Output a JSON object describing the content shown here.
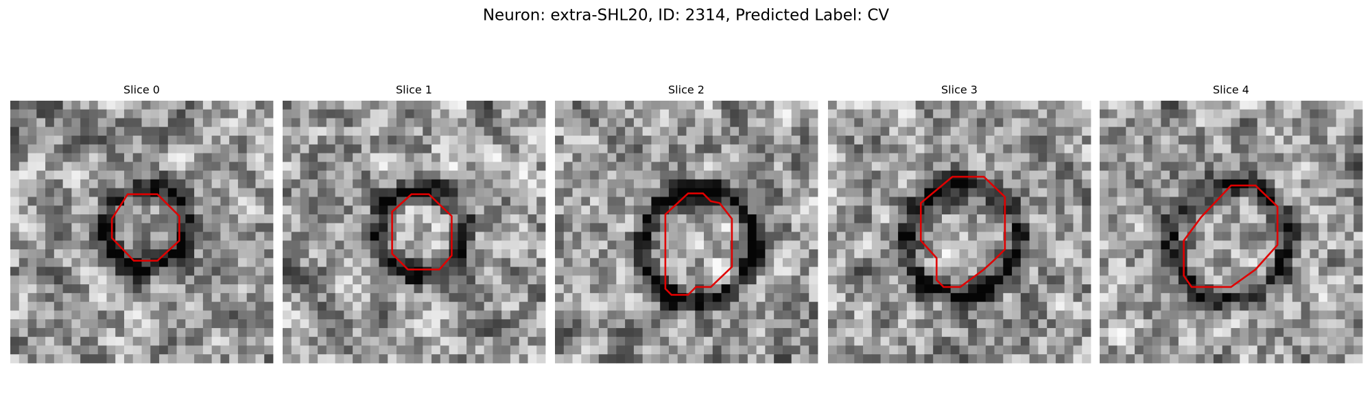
{
  "title": "Neuron: extra-SHL20, ID: 2314, Predicted Label: CV",
  "panels": [
    {
      "title": "Slice 0"
    },
    {
      "title": "Slice 1"
    },
    {
      "title": "Slice 2"
    },
    {
      "title": "Slice 3"
    },
    {
      "title": "Slice 4"
    }
  ]
}
